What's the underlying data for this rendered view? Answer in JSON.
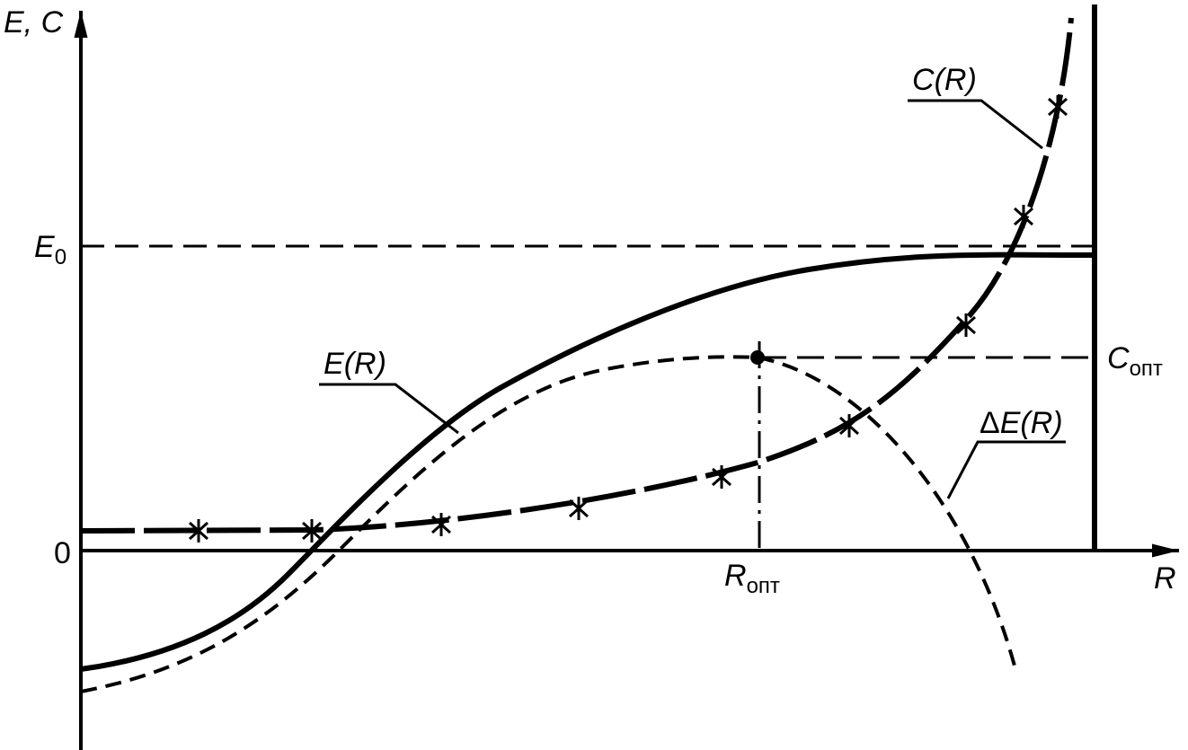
{
  "axes": {
    "y_label": "E, C",
    "x_label": "R",
    "origin": "0"
  },
  "levels": {
    "e0": {
      "main": "E",
      "sub": "0"
    },
    "c_opt": {
      "main": "C",
      "sub": "опт"
    },
    "r_opt": {
      "main": "R",
      "sub": "опт"
    }
  },
  "curves": {
    "c": {
      "main": "C",
      "arg": "(R)"
    },
    "e": {
      "main": "E",
      "arg": "(R)"
    },
    "de": {
      "prefix": "Δ",
      "main": "E",
      "arg": "(R)"
    }
  }
}
